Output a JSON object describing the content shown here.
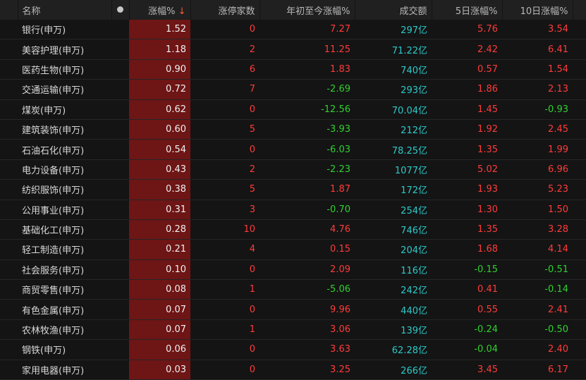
{
  "headers": {
    "name": "名称",
    "chg": "涨幅%",
    "sort_arrow": "↓",
    "limit_up": "涨停家数",
    "ytd": "年初至今涨幅%",
    "volume": "成交额",
    "d5": "5日涨幅%",
    "d10": "10日涨幅%"
  },
  "colors": {
    "up": "#ff3b3b",
    "down": "#2fd12f",
    "volume": "#2ec9c9",
    "highlight": "#6e1515"
  },
  "rows": [
    {
      "name": "银行(申万)",
      "chg": "1.52",
      "limit_up": "0",
      "ytd": "7.27",
      "volume": "297亿",
      "d5": "5.76",
      "d10": "3.54"
    },
    {
      "name": "美容护理(申万)",
      "chg": "1.18",
      "limit_up": "2",
      "ytd": "11.25",
      "volume": "71.22亿",
      "d5": "2.42",
      "d10": "6.41"
    },
    {
      "name": "医药生物(申万)",
      "chg": "0.90",
      "limit_up": "6",
      "ytd": "1.83",
      "volume": "740亿",
      "d5": "0.57",
      "d10": "1.54"
    },
    {
      "name": "交通运输(申万)",
      "chg": "0.72",
      "limit_up": "7",
      "ytd": "-2.69",
      "volume": "293亿",
      "d5": "1.86",
      "d10": "2.13"
    },
    {
      "name": "煤炭(申万)",
      "chg": "0.62",
      "limit_up": "0",
      "ytd": "-12.56",
      "volume": "70.04亿",
      "d5": "1.45",
      "d10": "-0.93"
    },
    {
      "name": "建筑装饰(申万)",
      "chg": "0.60",
      "limit_up": "5",
      "ytd": "-3.93",
      "volume": "212亿",
      "d5": "1.92",
      "d10": "2.45"
    },
    {
      "name": "石油石化(申万)",
      "chg": "0.54",
      "limit_up": "0",
      "ytd": "-6.03",
      "volume": "78.25亿",
      "d5": "1.35",
      "d10": "1.99"
    },
    {
      "name": "电力设备(申万)",
      "chg": "0.43",
      "limit_up": "2",
      "ytd": "-2.23",
      "volume": "1077亿",
      "d5": "5.02",
      "d10": "6.96"
    },
    {
      "name": "纺织服饰(申万)",
      "chg": "0.38",
      "limit_up": "5",
      "ytd": "1.87",
      "volume": "172亿",
      "d5": "1.93",
      "d10": "5.23"
    },
    {
      "name": "公用事业(申万)",
      "chg": "0.31",
      "limit_up": "3",
      "ytd": "-0.70",
      "volume": "254亿",
      "d5": "1.30",
      "d10": "1.50"
    },
    {
      "name": "基础化工(申万)",
      "chg": "0.28",
      "limit_up": "10",
      "ytd": "4.76",
      "volume": "746亿",
      "d5": "1.35",
      "d10": "3.28"
    },
    {
      "name": "轻工制造(申万)",
      "chg": "0.21",
      "limit_up": "4",
      "ytd": "0.15",
      "volume": "204亿",
      "d5": "1.68",
      "d10": "4.14"
    },
    {
      "name": "社会服务(申万)",
      "chg": "0.10",
      "limit_up": "0",
      "ytd": "2.09",
      "volume": "116亿",
      "d5": "-0.15",
      "d10": "-0.51"
    },
    {
      "name": "商贸零售(申万)",
      "chg": "0.08",
      "limit_up": "1",
      "ytd": "-5.06",
      "volume": "242亿",
      "d5": "0.41",
      "d10": "-0.14"
    },
    {
      "name": "有色金属(申万)",
      "chg": "0.07",
      "limit_up": "0",
      "ytd": "9.96",
      "volume": "440亿",
      "d5": "0.55",
      "d10": "2.41"
    },
    {
      "name": "农林牧渔(申万)",
      "chg": "0.07",
      "limit_up": "1",
      "ytd": "3.06",
      "volume": "139亿",
      "d5": "-0.24",
      "d10": "-0.50"
    },
    {
      "name": "钢铁(申万)",
      "chg": "0.06",
      "limit_up": "0",
      "ytd": "3.63",
      "volume": "62.28亿",
      "d5": "-0.04",
      "d10": "2.40"
    },
    {
      "name": "家用电器(申万)",
      "chg": "0.03",
      "limit_up": "0",
      "ytd": "3.25",
      "volume": "266亿",
      "d5": "3.45",
      "d10": "6.17"
    }
  ]
}
